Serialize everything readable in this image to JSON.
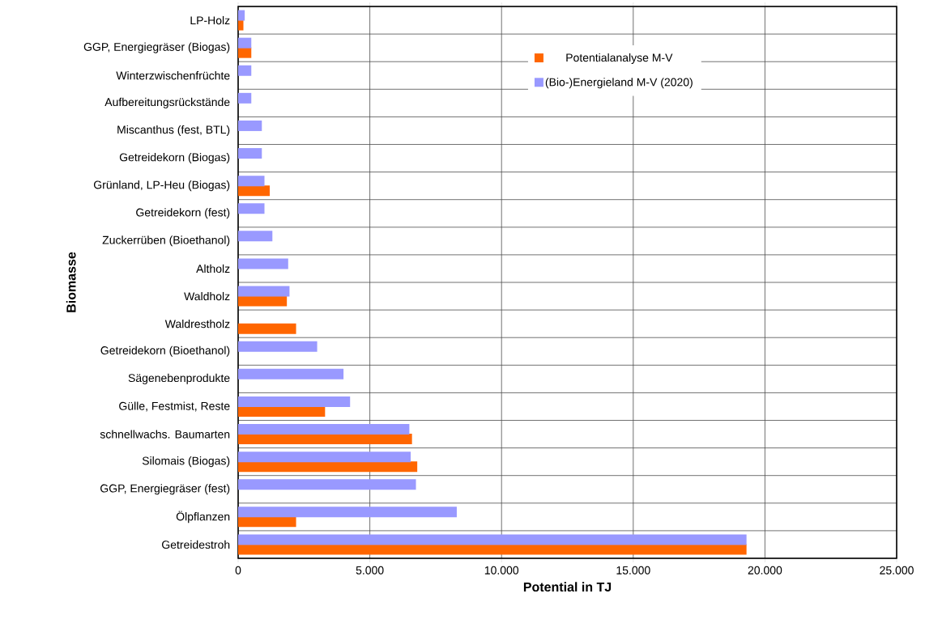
{
  "chart_data": {
    "type": "bar",
    "orientation": "horizontal",
    "xlabel": "Potential in TJ",
    "ylabel": "Biomasse",
    "categories": [
      "LP-Holz",
      "GGP, Energiegräser (Biogas)",
      "Winterzwischenfrüchte",
      "Aufbereitungsrückstände",
      "Miscanthus (fest, BTL)",
      "Getreidekorn (Biogas)",
      "Grünland, LP-Heu (Biogas)",
      "Getreidekorn (fest)",
      "Zuckerrüben (Bioethanol)",
      "Altholz",
      "Waldholz",
      "Waldrestholz",
      "Getreidekorn (Bioethanol)",
      "Sägenebenprodukte",
      "Gülle, Festmist, Reste",
      "schnellwachs. Baumarten",
      "Silomais (Biogas)",
      "GGP, Energiegräser (fest)",
      "Ölpflanzen",
      "Getreidestroh"
    ],
    "series": [
      {
        "name": "Potentialanalyse M-V",
        "color": "#ff6600",
        "values": [
          200,
          500,
          null,
          null,
          null,
          null,
          1200,
          null,
          null,
          null,
          1850,
          2200,
          null,
          null,
          3300,
          6600,
          6800,
          null,
          2200,
          19300
        ]
      },
      {
        "name": "(Bio-)Energieland M-V (2020)",
        "color": "#9999ff",
        "values": [
          250,
          500,
          500,
          500,
          900,
          900,
          1000,
          1000,
          1300,
          1900,
          1950,
          null,
          3000,
          4000,
          4250,
          6500,
          6550,
          6750,
          8300,
          19300
        ]
      }
    ],
    "xlim": [
      0,
      25000
    ],
    "xticks": [
      0,
      {
        "value": 5000,
        "label": "5.000"
      },
      {
        "value": 10000,
        "label": "10.000"
      },
      {
        "value": 15000,
        "label": "15.000"
      },
      {
        "value": 20000,
        "label": "20.000"
      },
      {
        "value": 25000,
        "label": "25.000"
      }
    ],
    "grid": true,
    "legend": "top right"
  }
}
